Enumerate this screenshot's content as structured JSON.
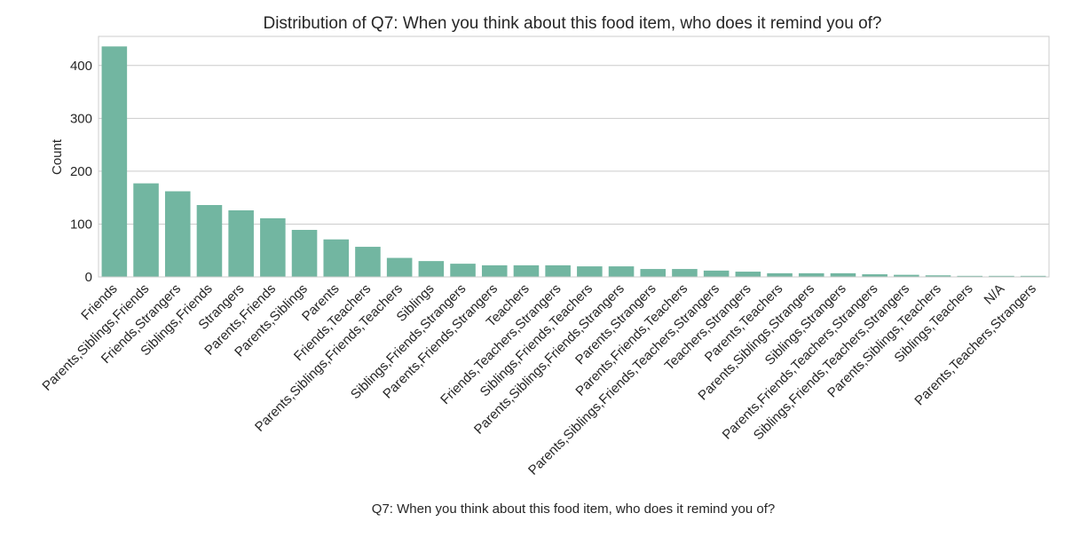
{
  "chart_data": {
    "type": "bar",
    "title": "Distribution of Q7: When you think about this food item, who does it remind you of?",
    "xlabel": "Q7: When you think about this food item, who does it remind you of?",
    "ylabel": "Count",
    "ylim": [
      0,
      455
    ],
    "yticks": [
      0,
      100,
      200,
      300,
      400
    ],
    "grid": true,
    "bar_color": "#72b6a1",
    "categories": [
      "Friends",
      "Parents,Siblings,Friends",
      "Friends,Strangers",
      "Siblings,Friends",
      "Strangers",
      "Parents,Friends",
      "Parents,Siblings",
      "Parents",
      "Friends,Teachers",
      "Parents,Siblings,Friends,Teachers",
      "Siblings",
      "Siblings,Friends,Strangers",
      "Parents,Friends,Strangers",
      "Teachers",
      "Friends,Teachers,Strangers",
      "Siblings,Friends,Teachers",
      "Parents,Siblings,Friends,Strangers",
      "Parents,Strangers",
      "Parents,Friends,Teachers",
      "Parents,Siblings,Friends,Teachers,Strangers",
      "Teachers,Strangers",
      "Parents,Teachers",
      "Parents,Siblings,Strangers",
      "Siblings,Strangers",
      "Parents,Friends,Teachers,Strangers",
      "Siblings,Friends,Teachers,Strangers",
      "Parents,Siblings,Teachers",
      "Siblings,Teachers",
      "N/A",
      "Parents,Teachers,Strangers"
    ],
    "values": [
      436,
      177,
      162,
      136,
      126,
      111,
      89,
      71,
      57,
      36,
      30,
      25,
      22,
      22,
      22,
      20,
      20,
      15,
      15,
      12,
      10,
      7,
      7,
      7,
      5,
      4,
      3,
      2,
      2,
      2
    ]
  }
}
